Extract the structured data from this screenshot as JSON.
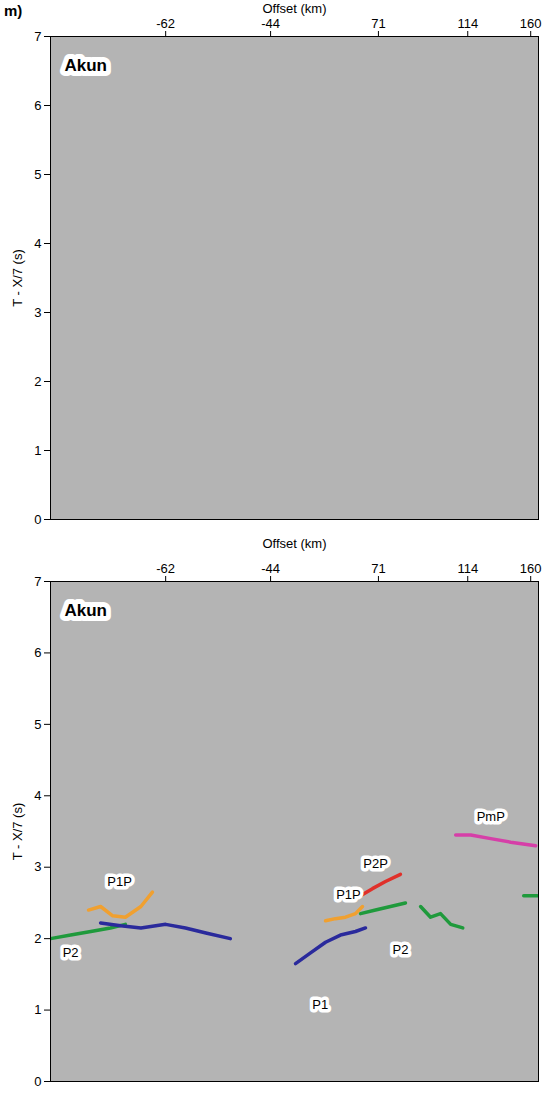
{
  "chart_data": [
    {
      "type": "line",
      "panel_label": "m)",
      "title": "Akun",
      "x_label": "Offset (km)",
      "y_label": "T - X/7 (s)",
      "xlim": [
        -82,
        166
      ],
      "xticks": [
        -62,
        -44,
        71,
        114,
        160
      ],
      "ylim": [
        0,
        7
      ],
      "yticks": [
        0,
        1,
        2,
        3,
        4,
        5,
        6,
        7
      ],
      "series": [],
      "annotations": []
    },
    {
      "type": "line",
      "title": "Akun",
      "x_label": "Offset (km)",
      "y_label": "T - X/7 (s)",
      "xlim": [
        -82,
        166
      ],
      "xticks": [
        -62,
        -44,
        71,
        114,
        160
      ],
      "ylim": [
        0,
        7
      ],
      "yticks": [
        0,
        1,
        2,
        3,
        4,
        5,
        6,
        7
      ],
      "series": [
        {
          "name": "P2",
          "color": "#1f9a3c",
          "x": [
            -82,
            -78.5,
            -75,
            -71.6,
            -69
          ],
          "values": [
            2.0,
            2.05,
            2.1,
            2.15,
            2.2
          ]
        },
        {
          "name": "P1",
          "color": "#2a2a9c",
          "x": [
            -73.3,
            -69.8,
            -66.3,
            -62,
            -58.6,
            -55.1,
            -50.9
          ],
          "values": [
            2.22,
            2.18,
            2.15,
            2.2,
            2.15,
            2.08,
            2.0
          ]
        },
        {
          "name": "P1P",
          "color": "#f0a030",
          "x": [
            -75.4,
            -73.3,
            -71.2,
            -69,
            -66.3,
            -64.3
          ],
          "values": [
            2.4,
            2.45,
            2.32,
            2.3,
            2.45,
            2.65
          ]
        },
        {
          "name": "P1",
          "color": "#2a2a9c",
          "x": [
            -17.4,
            -1.4,
            14.6,
            30.5,
            46.5,
            57.2
          ],
          "values": [
            1.65,
            1.8,
            1.95,
            2.05,
            2.1,
            2.15
          ]
        },
        {
          "name": "P1P",
          "color": "#f0a030",
          "x": [
            14.6,
            25.2,
            35.9,
            46.5,
            54
          ],
          "values": [
            2.25,
            2.28,
            2.3,
            2.35,
            2.45
          ]
        },
        {
          "name": "P2P",
          "color": "#e0302a",
          "x": [
            51.9,
            64.6,
            74.4,
            81.6
          ],
          "values": [
            2.6,
            2.7,
            2.8,
            2.9
          ]
        },
        {
          "name": "P2",
          "color": "#1f9a3c",
          "x": [
            51.9,
            67.9,
            76.8,
            84
          ],
          "values": [
            2.35,
            2.4,
            2.45,
            2.5
          ]
        },
        {
          "name": "P2",
          "color": "#1f9a3c",
          "x": [
            91.3,
            96.1,
            100.9,
            105.8,
            111.6
          ],
          "values": [
            2.45,
            2.3,
            2.35,
            2.2,
            2.15
          ]
        },
        {
          "name": "P2",
          "color": "#1f9a3c",
          "x": [
            154.9,
            165
          ],
          "values": [
            2.6,
            2.6
          ]
        },
        {
          "name": "PmP",
          "color": "#d63fa8",
          "x": [
            108.2,
            116.2,
            130.8,
            145.4,
            163.8
          ],
          "values": [
            3.45,
            3.45,
            3.4,
            3.35,
            3.3
          ]
        }
      ],
      "annotations": [
        {
          "text": "P2",
          "x": -78.5,
          "y": 1.8
        },
        {
          "text": "P1P",
          "x": -70,
          "y": 2.8
        },
        {
          "text": "P1",
          "x": 9,
          "y": 1.07
        },
        {
          "text": "P1P",
          "x": 39,
          "y": 2.62
        },
        {
          "text": "P2P",
          "x": 67.9,
          "y": 3.05
        },
        {
          "text": "P2",
          "x": 81.6,
          "y": 1.85
        },
        {
          "text": "PmP",
          "x": 130.8,
          "y": 3.7
        }
      ]
    }
  ]
}
